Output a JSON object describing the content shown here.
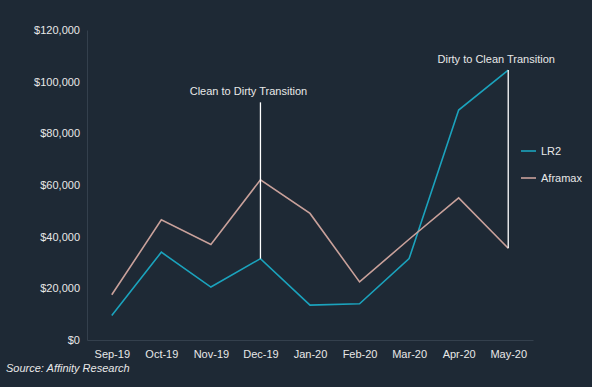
{
  "chart_data": {
    "type": "line",
    "categories": [
      "Sep-19",
      "Oct-19",
      "Nov-19",
      "Dec-19",
      "Jan-20",
      "Feb-20",
      "Mar-20",
      "Apr-20",
      "May-20"
    ],
    "series": [
      {
        "name": "LR2",
        "color": "#1ba3bd",
        "values": [
          9500,
          34000,
          20500,
          31500,
          13500,
          14000,
          31500,
          89000,
          104500
        ]
      },
      {
        "name": "Aframax",
        "color": "#c9a19b",
        "values": [
          17500,
          46500,
          37000,
          62000,
          49000,
          22500,
          39000,
          55000,
          35500
        ]
      }
    ],
    "ylim": [
      0,
      120000
    ],
    "yticks": [
      {
        "value": 0,
        "label": "$0"
      },
      {
        "value": 20000,
        "label": "$20,000"
      },
      {
        "value": 40000,
        "label": "$40,000"
      },
      {
        "value": 60000,
        "label": "$60,000"
      },
      {
        "value": 80000,
        "label": "$80,000"
      },
      {
        "value": 100000,
        "label": "$100,000"
      },
      {
        "value": 120000,
        "label": "$120,000"
      }
    ],
    "grid": false,
    "legend": "right",
    "annotations": [
      {
        "text": "Clean to Dirty Transition",
        "x": "Dec-19",
        "y": [
          31500,
          92000
        ]
      },
      {
        "text": "Dirty to Clean Transition",
        "x": "May-20",
        "y": [
          35500,
          104500
        ]
      }
    ],
    "source": "Source: Affinity Research"
  }
}
